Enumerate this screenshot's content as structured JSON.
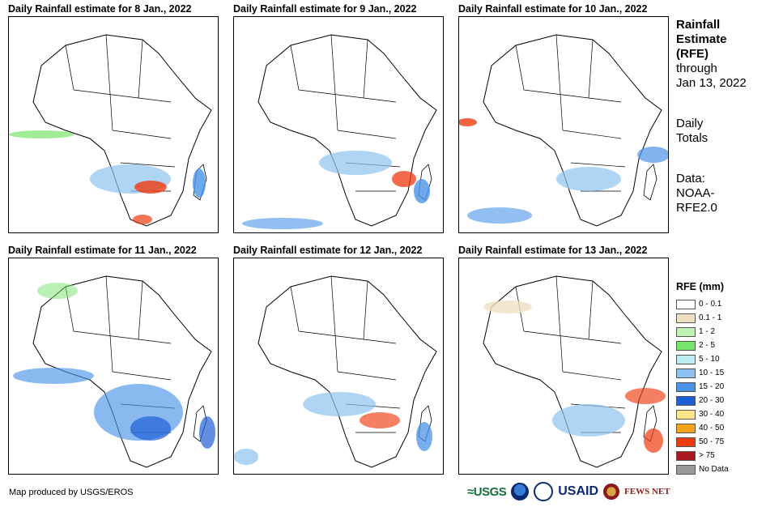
{
  "panels": [
    {
      "title": "Daily Rainfall estimate for 8 Jan., 2022"
    },
    {
      "title": "Daily Rainfall estimate for 9 Jan., 2022"
    },
    {
      "title": "Daily Rainfall estimate for 10 Jan., 2022"
    },
    {
      "title": "Daily Rainfall estimate for 11 Jan., 2022"
    },
    {
      "title": "Daily Rainfall estimate for 12 Jan., 2022"
    },
    {
      "title": "Daily Rainfall estimate for 13 Jan., 2022"
    }
  ],
  "sidebar": {
    "title_line1": "Rainfall",
    "title_line2": "Estimate",
    "title_line3": "(RFE)",
    "through": "through",
    "date": "Jan 13, 2022",
    "daily": "Daily",
    "totals": "Totals",
    "data_label": "Data:",
    "data_src1": "NOAA-",
    "data_src2": "RFE2.0"
  },
  "legend": {
    "title": "RFE (mm)",
    "items": [
      {
        "label": "0 - 0.1",
        "color": "#ffffff"
      },
      {
        "label": "0.1 - 1",
        "color": "#efe0c4"
      },
      {
        "label": "1 - 2",
        "color": "#bff0b4"
      },
      {
        "label": "2 - 5",
        "color": "#77e46b"
      },
      {
        "label": "5 - 10",
        "color": "#bdeef5"
      },
      {
        "label": "10 - 15",
        "color": "#8ec2f0"
      },
      {
        "label": "15 - 20",
        "color": "#4b93e8"
      },
      {
        "label": "20 - 30",
        "color": "#1f5fd6"
      },
      {
        "label": "30 - 40",
        "color": "#fde58a"
      },
      {
        "label": "40 - 50",
        "color": "#f5a21c"
      },
      {
        "label": "50 - 75",
        "color": "#ee3b10"
      },
      {
        "label": "> 75",
        "color": "#a8171b"
      },
      {
        "label": "No Data",
        "color": "#9a9a9a"
      }
    ]
  },
  "footer": {
    "credit": "Map produced by USGS/EROS",
    "logo_usgs": "≈USGS",
    "logo_usaid": "USAID",
    "logo_fews": "FEWS NET"
  }
}
